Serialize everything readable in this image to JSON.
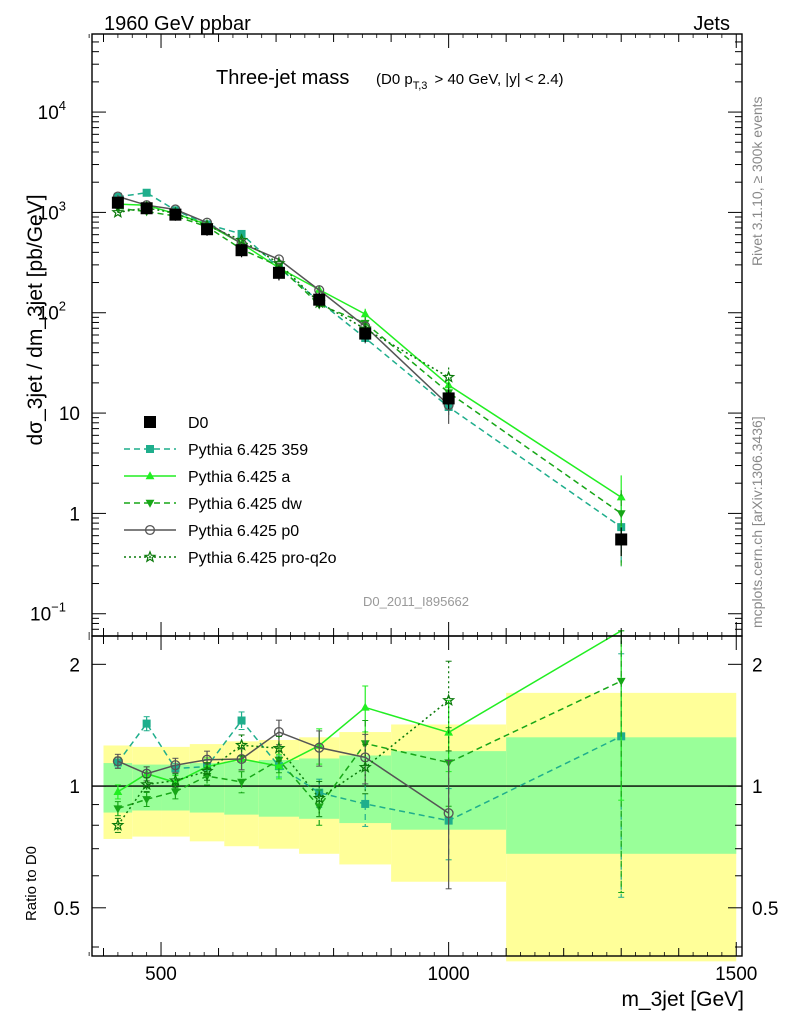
{
  "header": {
    "left": "1960 GeV ppbar",
    "right": "Jets"
  },
  "side": {
    "rivet": "Rivet 3.1.10, ≥ 300k events",
    "mcplots": "mcplots.cern.ch [arXiv:1306.3436]"
  },
  "chart_data": {
    "type": "line",
    "title": "Three-jet mass",
    "title_cut": "(D0 p_T,3 > 40 GeV, |y| < 2.4)",
    "analysis_label": "D0_2011_I895662",
    "xlabel": "m_3jet [GeV]",
    "ylabel_main": "dσ_3jet / dm_3jet [pb/GeV]",
    "ylabel_ratio": "Ratio to D0",
    "xlim": [
      380,
      1510
    ],
    "main_ylim": [
      0.06,
      60000
    ],
    "main_yscale": "log",
    "ratio_ylim": [
      0.38,
      2.35
    ],
    "ratio_yscale": "log",
    "x_ticks": [
      500,
      1000,
      1500
    ],
    "main_y_ticks": [
      "10^-1",
      "1",
      "10",
      "10^2",
      "10^3",
      "10^4"
    ],
    "ratio_y_ticks": [
      0.5,
      1,
      2
    ],
    "legend_position": "lower-left",
    "data": {
      "name": "D0",
      "color": "#000000",
      "x": [
        425,
        475,
        525,
        580,
        640,
        705,
        775,
        855,
        1000,
        1300
      ],
      "x_lo": [
        400,
        450,
        500,
        550,
        610,
        670,
        740,
        810,
        900,
        1100
      ],
      "x_hi": [
        450,
        500,
        550,
        610,
        670,
        740,
        810,
        900,
        1100,
        1500
      ],
      "y": [
        1250,
        1100,
        950,
        680,
        420,
        250,
        135,
        62,
        14,
        0.55
      ],
      "band_inner": [
        0.14,
        0.13,
        0.13,
        0.14,
        0.15,
        0.16,
        0.17,
        0.19,
        0.22,
        0.32
      ],
      "band_outer": [
        0.26,
        0.25,
        0.25,
        0.27,
        0.29,
        0.3,
        0.32,
        0.36,
        0.42,
        0.7
      ]
    },
    "series": [
      {
        "name": "Pythia 6.425 359",
        "color": "#1fae8c",
        "dash": "dashed",
        "marker": "square",
        "x": [
          425,
          475,
          525,
          580,
          640,
          705,
          775,
          855,
          1000,
          1300
        ],
        "y": [
          1430,
          1570,
          1050,
          760,
          610,
          280,
          130,
          56,
          11.5,
          0.73
        ],
        "err": [
          0.03,
          0.04,
          0.03,
          0.04,
          0.05,
          0.06,
          0.08,
          0.12,
          0.2,
          0.6
        ]
      },
      {
        "name": "Pythia 6.425 a",
        "color": "#22ee22",
        "dash": "solid",
        "marker": "triangle-up",
        "x": [
          425,
          475,
          525,
          580,
          640,
          705,
          775,
          855,
          1000,
          1300
        ],
        "y": [
          1210,
          1180,
          970,
          760,
          490,
          280,
          170,
          97,
          19,
          1.45
        ],
        "err": [
          0.04,
          0.04,
          0.04,
          0.05,
          0.06,
          0.07,
          0.1,
          0.13,
          0.2,
          0.65
        ]
      },
      {
        "name": "Pythia 6.425 dw",
        "color": "#17a617",
        "dash": "dashed",
        "marker": "triangle-down",
        "x": [
          425,
          475,
          525,
          580,
          640,
          705,
          775,
          855,
          1000,
          1300
        ],
        "y": [
          1100,
          1020,
          920,
          720,
          430,
          290,
          120,
          79,
          16,
          1.0
        ],
        "err": [
          0.04,
          0.04,
          0.04,
          0.05,
          0.06,
          0.07,
          0.1,
          0.14,
          0.22,
          0.7
        ]
      },
      {
        "name": "Pythia 6.425 p0",
        "color": "#555555",
        "dash": "solid",
        "marker": "circle-open",
        "x": [
          425,
          475,
          525,
          580,
          640,
          705,
          775,
          855,
          1000,
          1300
        ],
        "y": [
          1440,
          1180,
          1070,
          790,
          490,
          340,
          168,
          73,
          12,
          null
        ],
        "err": [
          0.04,
          0.04,
          0.04,
          0.05,
          0.06,
          0.07,
          0.1,
          0.14,
          0.35,
          null
        ]
      },
      {
        "name": "Pythia 6.425 pro-q2o",
        "color": "#0b7a0b",
        "dash": "dotted",
        "marker": "star-open",
        "x": [
          425,
          475,
          525,
          580,
          640,
          705,
          775,
          855,
          1000,
          1300
        ],
        "y": [
          1000,
          1110,
          980,
          740,
          530,
          310,
          126,
          69,
          22.8,
          null
        ],
        "err": [
          0.04,
          0.04,
          0.04,
          0.05,
          0.06,
          0.07,
          0.1,
          0.14,
          0.25,
          null
        ]
      }
    ]
  }
}
